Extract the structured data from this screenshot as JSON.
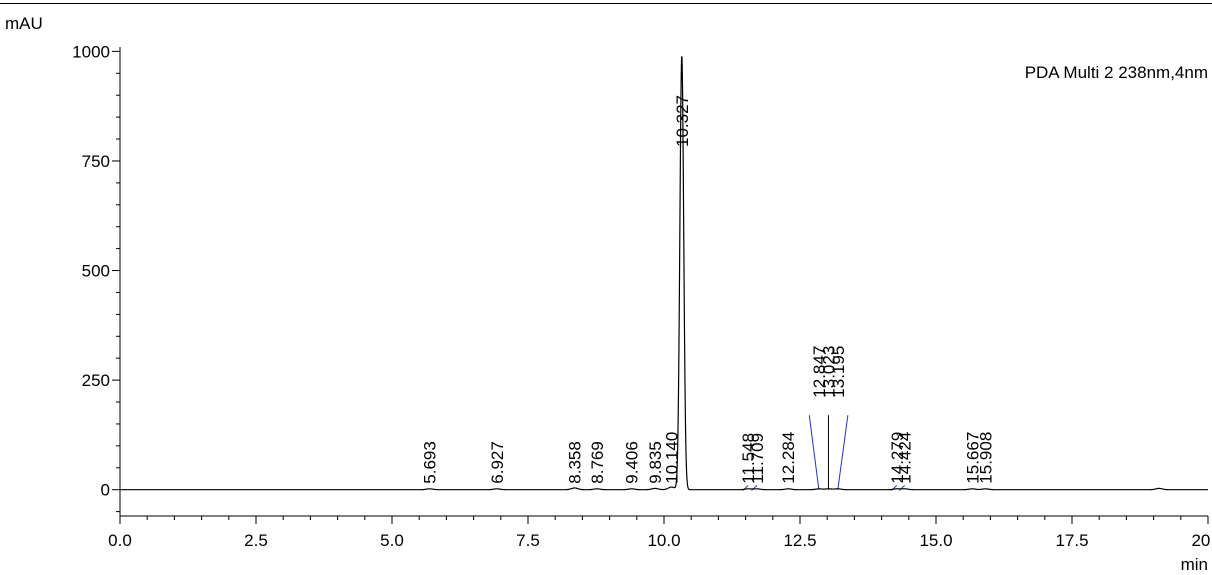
{
  "chart_data": {
    "type": "line",
    "title": "",
    "ylabel": "mAU",
    "xlabel": "min",
    "legend": "PDA Multi 2 238nm,4nm",
    "xlim": [
      0.0,
      20.0
    ],
    "ylim": [
      -60,
      1010
    ],
    "x_ticks": [
      0.0,
      2.5,
      5.0,
      7.5,
      10.0,
      12.5,
      15.0,
      17.5,
      20.0
    ],
    "x_tick_labels": [
      "0.0",
      "2.5",
      "5.0",
      "7.5",
      "10.0",
      "12.5",
      "15.0",
      "17.5",
      "20.0"
    ],
    "y_ticks": [
      0,
      250,
      500,
      750,
      1000
    ],
    "y_tick_labels": [
      "0",
      "250",
      "500",
      "750",
      "1000"
    ],
    "grid": false,
    "peaks": [
      {
        "rt": 5.693,
        "label": "5.693",
        "height": 2
      },
      {
        "rt": 6.927,
        "label": "6.927",
        "height": 2
      },
      {
        "rt": 8.358,
        "label": "8.358",
        "height": 4
      },
      {
        "rt": 8.769,
        "label": "8.769",
        "height": 2
      },
      {
        "rt": 9.406,
        "label": "9.406",
        "height": 2
      },
      {
        "rt": 9.835,
        "label": "9.835",
        "height": 3
      },
      {
        "rt": 10.14,
        "label": "10.140",
        "height": 6
      },
      {
        "rt": 10.327,
        "label": "10.327",
        "height": 990
      },
      {
        "rt": 11.548,
        "label": "11.548",
        "height": 2
      },
      {
        "rt": 11.709,
        "label": "11.709",
        "height": 2
      },
      {
        "rt": 12.284,
        "label": "12.284",
        "height": 2
      },
      {
        "rt": 12.847,
        "label": "12.847",
        "height": 2
      },
      {
        "rt": 13.023,
        "label": "13.023",
        "height": 2
      },
      {
        "rt": 13.195,
        "label": "13.195",
        "height": 2
      },
      {
        "rt": 14.279,
        "label": "14.279",
        "height": 2
      },
      {
        "rt": 14.424,
        "label": "14.424",
        "height": 2
      },
      {
        "rt": 15.667,
        "label": "15.667",
        "height": 2
      },
      {
        "rt": 15.908,
        "label": "15.908",
        "height": 2
      },
      {
        "rt": 19.1,
        "label": "",
        "height": 3
      }
    ]
  }
}
